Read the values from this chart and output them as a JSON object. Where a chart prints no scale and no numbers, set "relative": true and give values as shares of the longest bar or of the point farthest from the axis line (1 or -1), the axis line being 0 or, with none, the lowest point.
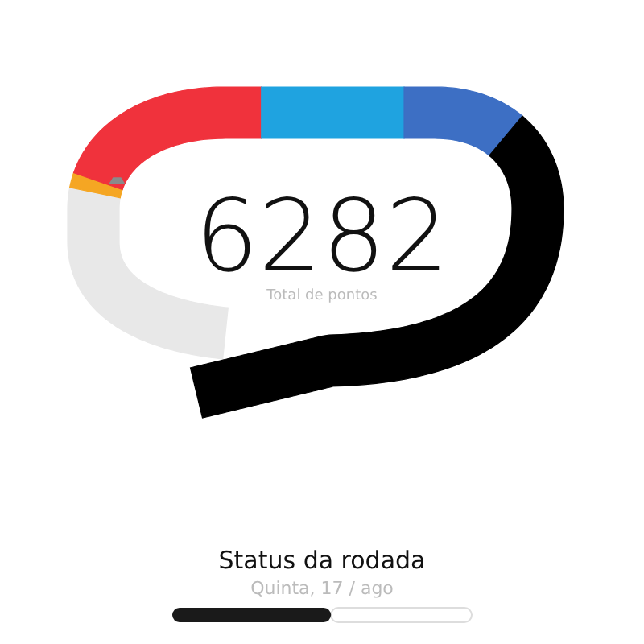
{
  "chart_data": [
    {
      "type": "other",
      "title": "6282",
      "subtitle": "Total de pontos"
    },
    {
      "type": "bar",
      "orientation": "horizontal",
      "stacked": true,
      "relative": true,
      "title": "Status da rodada",
      "subtitle": "Quinta, 17 / ago",
      "categories": [
        null
      ],
      "series": [
        {
          "color": "#1a1a1a",
          "values": [
            0.53
          ]
        },
        {
          "color": "#ffffff",
          "values": [
            0.47
          ]
        }
      ]
    }
  ]
}
